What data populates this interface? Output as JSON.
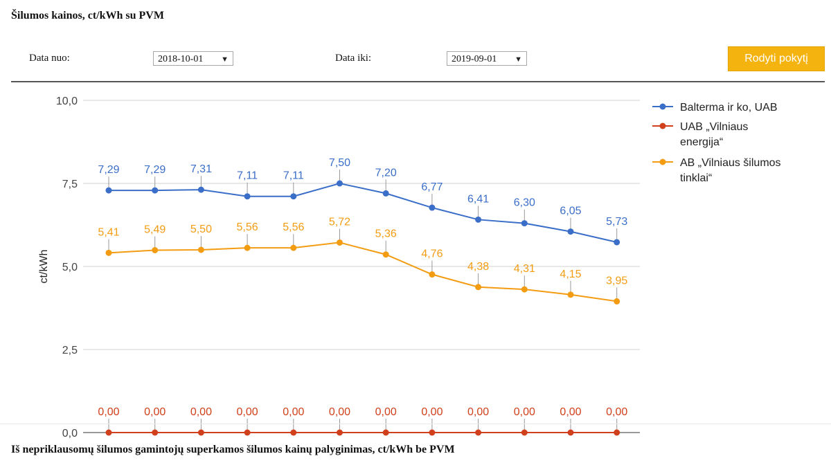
{
  "page": {
    "title": "Šilumos kainos, ct/kWh su PVM",
    "footer_title": "Iš nepriklausomų šilumos gamintojų superkamos šilumos kainų palyginimas, ct/kWh be PVM"
  },
  "filters": {
    "from_label": "Data nuo:",
    "from_value": "2018-10-01",
    "to_label": "Data iki:",
    "to_value": "2019-09-01",
    "dropdown_icon": "triangle-down",
    "show_button_label": "Rodyti pokytį"
  },
  "colors": {
    "button": "#f5b30f",
    "series_blue": "#3a6ec8",
    "series_red": "#d1401c",
    "series_orange": "#f39c12",
    "grid": "#d0d0d0"
  },
  "chart_data": {
    "type": "line",
    "ylabel": "ct/kWh",
    "ylim": [
      0,
      10
    ],
    "y_ticks": [
      "0,0",
      "2,5",
      "5,0",
      "7,5",
      "10,0"
    ],
    "y_tick_values": [
      0,
      2.5,
      5,
      7.5,
      10
    ],
    "point_count": 12,
    "grid": true,
    "legend_position": "right",
    "series": [
      {
        "name": "Balterma ir ko, UAB",
        "legend_lines": [
          "Balterma ir ko, UAB"
        ],
        "color": "#3a6ec8",
        "values": [
          7.29,
          7.29,
          7.31,
          7.11,
          7.11,
          7.5,
          7.2,
          6.77,
          6.41,
          6.3,
          6.05,
          5.73
        ],
        "labels": [
          "7,29",
          "7,29",
          "7,31",
          "7,11",
          "7,11",
          "7,50",
          "7,20",
          "6,77",
          "6,41",
          "6,30",
          "6,05",
          "5,73"
        ]
      },
      {
        "name": "UAB „Vilniaus energija“",
        "legend_lines": [
          "UAB „Vilniaus",
          "energija“"
        ],
        "color": "#d1401c",
        "values": [
          0,
          0,
          0,
          0,
          0,
          0,
          0,
          0,
          0,
          0,
          0,
          0
        ],
        "labels": [
          "0,00",
          "0,00",
          "0,00",
          "0,00",
          "0,00",
          "0,00",
          "0,00",
          "0,00",
          "0,00",
          "0,00",
          "0,00",
          "0,00"
        ]
      },
      {
        "name": "AB „Vilniaus šilumos tinklai“",
        "legend_lines": [
          "AB „Vilniaus šilumos",
          "tinklai“"
        ],
        "color": "#f39c12",
        "values": [
          5.41,
          5.49,
          5.5,
          5.56,
          5.56,
          5.72,
          5.36,
          4.76,
          4.38,
          4.31,
          4.15,
          3.95
        ],
        "labels": [
          "5,41",
          "5,49",
          "5,50",
          "5,56",
          "5,56",
          "5,72",
          "5,36",
          "4,76",
          "4,38",
          "4,31",
          "4,15",
          "3,95"
        ]
      }
    ]
  }
}
